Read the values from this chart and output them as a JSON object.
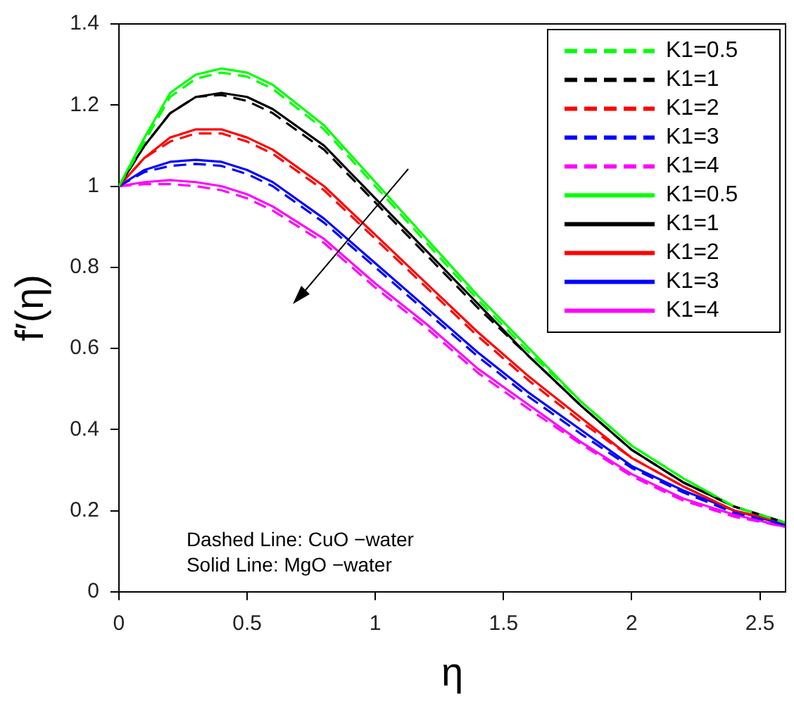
{
  "chart_data": {
    "type": "line",
    "xlabel": "η",
    "ylabel": "f′(η)",
    "x": [
      0,
      0.1,
      0.2,
      0.3,
      0.4,
      0.5,
      0.6,
      0.8,
      1.0,
      1.2,
      1.4,
      1.6,
      1.8,
      2.0,
      2.2,
      2.4,
      2.6
    ],
    "series": [
      {
        "name": "K1=0.5",
        "color": "#00ff00",
        "line_style": "dashed",
        "values": [
          1.0,
          1.11,
          1.22,
          1.265,
          1.28,
          1.27,
          1.24,
          1.14,
          1.0,
          0.86,
          0.72,
          0.59,
          0.47,
          0.36,
          0.28,
          0.21,
          0.17
        ]
      },
      {
        "name": "K1=1",
        "color": "#000000",
        "line_style": "dashed",
        "values": [
          1.0,
          1.1,
          1.18,
          1.22,
          1.225,
          1.21,
          1.18,
          1.09,
          0.96,
          0.83,
          0.7,
          0.58,
          0.46,
          0.35,
          0.27,
          0.21,
          0.17
        ]
      },
      {
        "name": "K1=2",
        "color": "#ff0000",
        "line_style": "dashed",
        "values": [
          1.0,
          1.07,
          1.11,
          1.13,
          1.13,
          1.11,
          1.08,
          0.99,
          0.87,
          0.75,
          0.63,
          0.52,
          0.42,
          0.33,
          0.26,
          0.2,
          0.17
        ]
      },
      {
        "name": "K1=3",
        "color": "#0000ff",
        "line_style": "dashed",
        "values": [
          1.0,
          1.035,
          1.05,
          1.055,
          1.05,
          1.03,
          1.0,
          0.91,
          0.8,
          0.69,
          0.58,
          0.48,
          0.39,
          0.305,
          0.245,
          0.195,
          0.165
        ]
      },
      {
        "name": "K1=4",
        "color": "#ff00ff",
        "line_style": "dashed",
        "values": [
          1.0,
          1.005,
          1.005,
          1.0,
          0.99,
          0.97,
          0.94,
          0.86,
          0.75,
          0.65,
          0.54,
          0.45,
          0.365,
          0.285,
          0.225,
          0.185,
          0.16
        ]
      },
      {
        "name": "K1=0.5",
        "color": "#00ff00",
        "line_style": "solid",
        "values": [
          1.0,
          1.12,
          1.23,
          1.275,
          1.29,
          1.28,
          1.25,
          1.15,
          1.01,
          0.87,
          0.73,
          0.6,
          0.47,
          0.36,
          0.28,
          0.21,
          0.17
        ]
      },
      {
        "name": "K1=1",
        "color": "#000000",
        "line_style": "solid",
        "values": [
          1.0,
          1.1,
          1.18,
          1.22,
          1.23,
          1.22,
          1.19,
          1.1,
          0.97,
          0.84,
          0.71,
          0.58,
          0.46,
          0.35,
          0.27,
          0.21,
          0.17
        ]
      },
      {
        "name": "K1=2",
        "color": "#ff0000",
        "line_style": "solid",
        "values": [
          1.0,
          1.07,
          1.12,
          1.14,
          1.14,
          1.12,
          1.09,
          1.0,
          0.88,
          0.76,
          0.64,
          0.53,
          0.43,
          0.33,
          0.26,
          0.2,
          0.17
        ]
      },
      {
        "name": "K1=3",
        "color": "#0000ff",
        "line_style": "solid",
        "values": [
          1.0,
          1.04,
          1.06,
          1.065,
          1.06,
          1.04,
          1.01,
          0.92,
          0.81,
          0.7,
          0.59,
          0.49,
          0.4,
          0.31,
          0.25,
          0.2,
          0.165
        ]
      },
      {
        "name": "K1=4",
        "color": "#ff00ff",
        "line_style": "solid",
        "values": [
          1.0,
          1.01,
          1.015,
          1.01,
          1.0,
          0.98,
          0.95,
          0.87,
          0.76,
          0.66,
          0.55,
          0.46,
          0.37,
          0.29,
          0.23,
          0.19,
          0.16
        ]
      }
    ],
    "xlim": [
      0,
      2.6
    ],
    "xticks": [
      0,
      0.5,
      1,
      1.5,
      2,
      2.5
    ],
    "ylim": [
      0,
      1.4
    ],
    "yticks": [
      0,
      0.2,
      0.4,
      0.6,
      0.8,
      1,
      1.2,
      1.4
    ],
    "grid": false,
    "legend": "top right",
    "marker": "none",
    "annotations": [
      "Dashed Line: CuO −water",
      "Solid Line: MgO −water"
    ]
  }
}
